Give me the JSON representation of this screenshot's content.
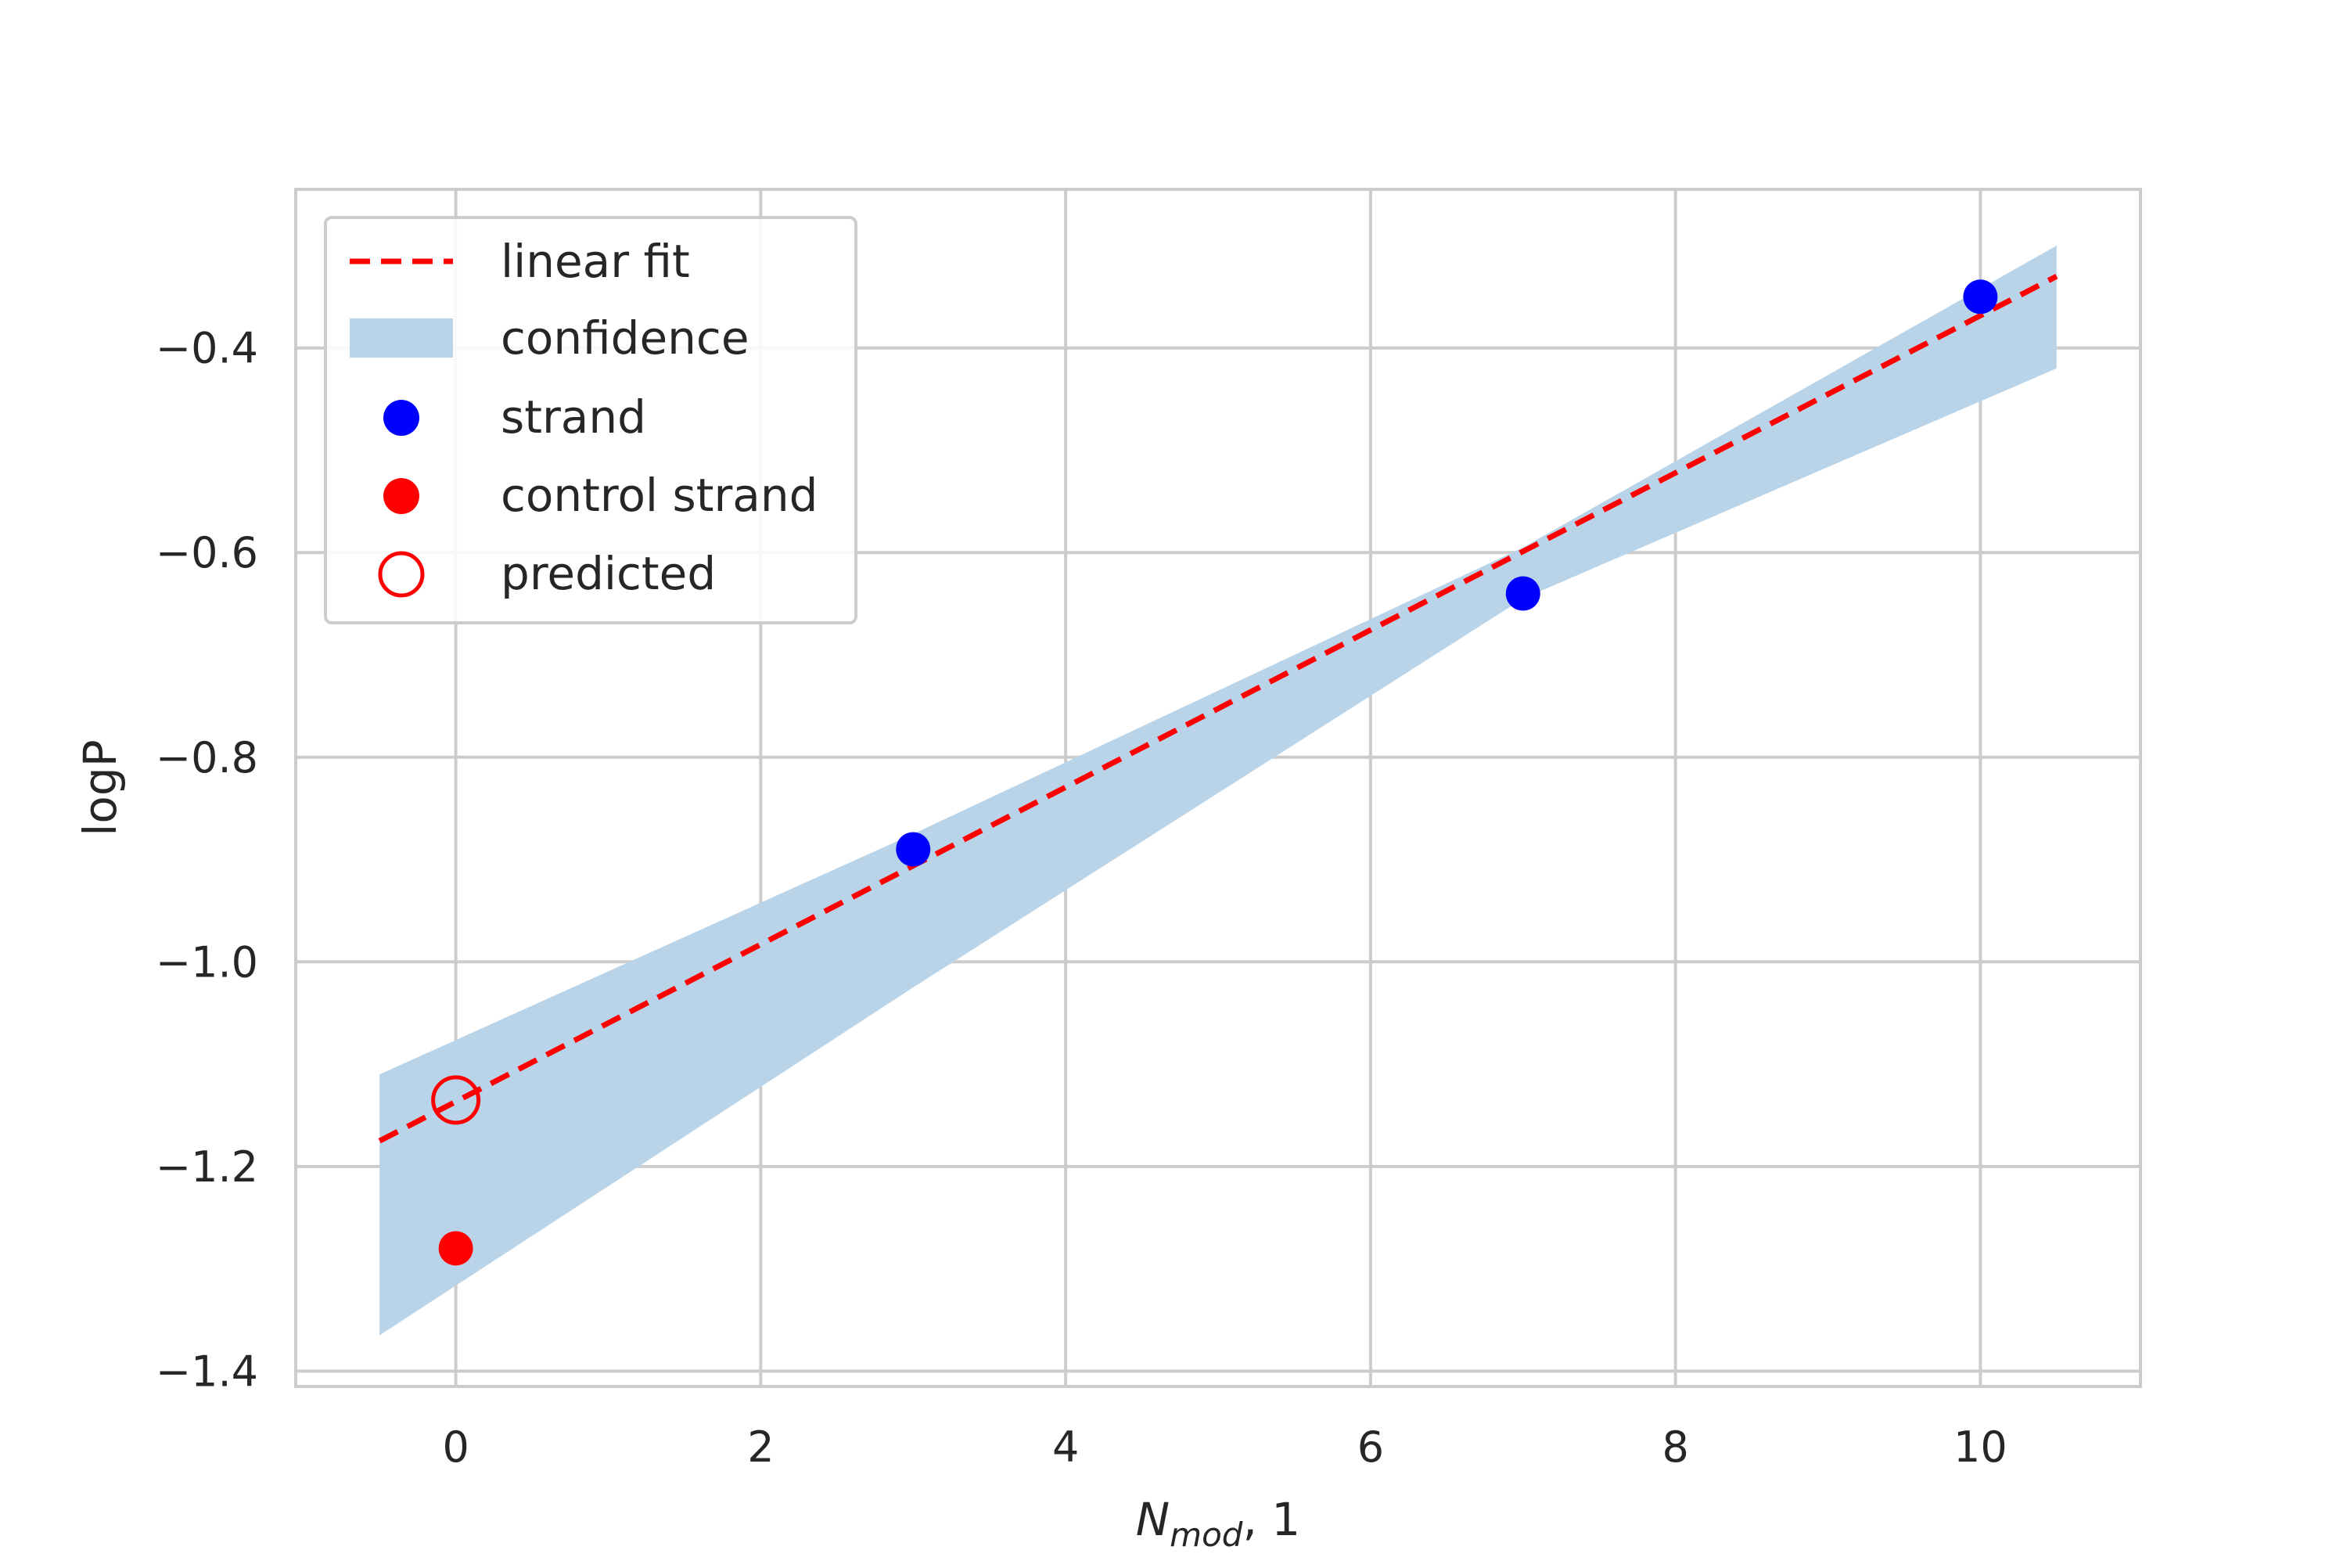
{
  "chart_data": {
    "type": "scatter",
    "title": "",
    "xlabel": {
      "main": "N",
      "sub": "mod",
      "suffix": ", 1"
    },
    "ylabel": "logP",
    "xlim": [
      -1.05,
      11.05
    ],
    "ylim": [
      -1.415,
      -0.245
    ],
    "xticks": [
      0,
      2,
      4,
      6,
      8,
      10
    ],
    "yticks": [
      -1.4,
      -1.2,
      -1.0,
      -0.8,
      -0.6,
      -0.4
    ],
    "xtick_labels": [
      "0",
      "2",
      "4",
      "6",
      "8",
      "10"
    ],
    "ytick_labels": [
      "−1.4",
      "−1.2",
      "−1.0",
      "−0.8",
      "−0.6",
      "−0.4"
    ],
    "grid": true,
    "legend_position": "top-left",
    "series": [
      {
        "name": "linear fit",
        "kind": "line",
        "style": "dashed",
        "color": "#ff0000",
        "x": [
          -0.5,
          10.5
        ],
        "y": [
          -1.175,
          -0.33
        ]
      },
      {
        "name": "confidence",
        "kind": "band",
        "color": "#b9d4e8",
        "x": [
          -0.5,
          3,
          7,
          10.5
        ],
        "y_upper": [
          -1.11,
          -0.875,
          -0.595,
          -0.3
        ],
        "y_lower": [
          -1.365,
          -1.025,
          -0.645,
          -0.42
        ]
      },
      {
        "name": "strand",
        "kind": "scatter",
        "color": "#0000ff",
        "x": [
          3,
          7,
          10
        ],
        "y": [
          -0.89,
          -0.64,
          -0.35
        ]
      },
      {
        "name": "control strand",
        "kind": "scatter",
        "color": "#ff0000",
        "x": [
          0
        ],
        "y": [
          -1.28
        ]
      },
      {
        "name": "predicted",
        "kind": "scatter",
        "marker": "open-circle",
        "color": "#ff0000",
        "x": [
          0
        ],
        "y": [
          -1.135
        ]
      }
    ]
  }
}
